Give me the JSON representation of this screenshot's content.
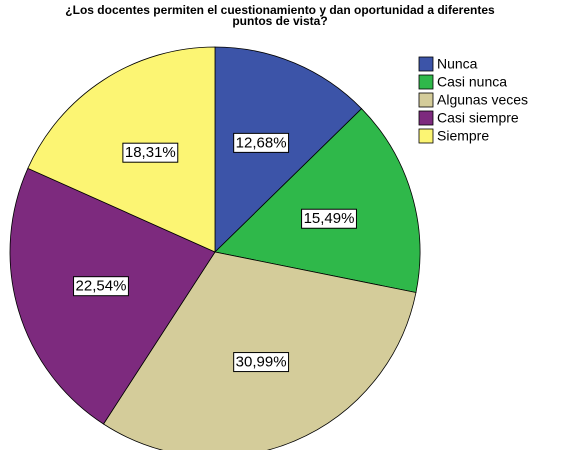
{
  "chart_data": {
    "type": "pie",
    "title": [
      "¿Los docentes permiten el cuestionamiento y dan oportunidad a diferentes",
      "puntos de vista?"
    ],
    "categories": [
      "Nunca",
      "Casi nunca",
      "Algunas veces",
      "Casi siempre",
      "Siempre"
    ],
    "values": [
      12.68,
      15.49,
      30.99,
      22.54,
      18.31
    ],
    "value_labels": [
      "12,68%",
      "15,49%",
      "30,99%",
      "22,54%",
      "18,31%"
    ],
    "colors": [
      "#3c54a8",
      "#2fb84a",
      "#d4cc9a",
      "#7d2a7e",
      "#fcf573"
    ]
  }
}
